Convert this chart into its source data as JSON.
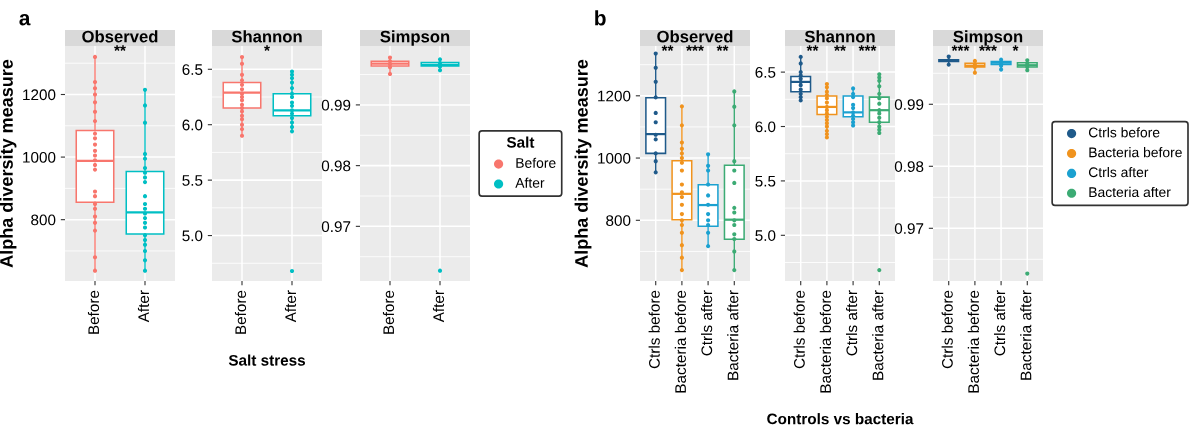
{
  "chart_data": [
    {
      "type": "box",
      "title": "Observed",
      "ylabel": "Alpha diversity measure",
      "categories": [
        "Before",
        "After"
      ],
      "colors": [
        "#f8766d",
        "#00bfc4"
      ],
      "ylim": [
        604,
        1355
      ],
      "yticks": [
        800,
        1000,
        1200
      ],
      "grid": true,
      "legend": false,
      "annotations": [
        "a",
        "**"
      ],
      "boxes": [
        {
          "low": 637,
          "q1": 856,
          "median": 988,
          "q3": 1085,
          "high": 1320
        },
        {
          "low": 637,
          "q1": 754,
          "median": 823,
          "q3": 954,
          "high": 1215
        }
      ],
      "series": [
        {
          "type": "scatter",
          "color": "#f8766d",
          "x": [
            "Before",
            "Before",
            "Before",
            "Before",
            "Before",
            "Before",
            "Before",
            "Before",
            "Before",
            "Before",
            "Before",
            "Before",
            "Before",
            "Before",
            "Before",
            "Before",
            "Before",
            "Before",
            "Before",
            "Before",
            "Before",
            "Before",
            "Before",
            "Before"
          ],
          "values": [
            1320,
            1240,
            1220,
            1200,
            1175,
            1145,
            1115,
            1075,
            1060,
            1040,
            1020,
            1005,
            990,
            975,
            960,
            890,
            875,
            850,
            835,
            810,
            790,
            765,
            680,
            637
          ]
        },
        {
          "type": "scatter",
          "color": "#00bfc4",
          "x": [
            "After",
            "After",
            "After",
            "After",
            "After",
            "After",
            "After",
            "After",
            "After",
            "After",
            "After",
            "After",
            "After",
            "After",
            "After",
            "After",
            "After",
            "After",
            "After",
            "After",
            "After",
            "After"
          ],
          "values": [
            1215,
            1165,
            1110,
            1010,
            995,
            965,
            950,
            935,
            920,
            875,
            850,
            835,
            820,
            805,
            790,
            775,
            750,
            735,
            720,
            700,
            670,
            637
          ]
        }
      ]
    },
    {
      "type": "box",
      "title": "Shannon",
      "xlabel": "Salt stress",
      "categories": [
        "Before",
        "After"
      ],
      "colors": [
        "#f8766d",
        "#00bfc4"
      ],
      "ylim": [
        4.59,
        6.71
      ],
      "yticks": [
        {
          "value": 5.0,
          "label": "5.0"
        },
        {
          "value": 5.5,
          "label": "5.5"
        },
        {
          "value": 6.0,
          "label": "6.0"
        },
        {
          "value": 6.5,
          "label": "6.5"
        }
      ],
      "grid": true,
      "legend": false,
      "annotations": [
        "*"
      ],
      "boxes": [
        {
          "low": 5.9,
          "q1": 6.15,
          "median": 6.29,
          "q3": 6.38,
          "high": 6.61
        },
        {
          "low": 5.94,
          "q1": 6.08,
          "median": 6.13,
          "q3": 6.28,
          "high": 6.48
        }
      ],
      "series": [
        {
          "type": "scatter",
          "color": "#f8766d",
          "x": [
            "Before",
            "Before",
            "Before",
            "Before",
            "Before",
            "Before",
            "Before",
            "Before",
            "Before",
            "Before",
            "Before",
            "Before",
            "Before",
            "Before",
            "Before",
            "Before",
            "Before"
          ],
          "values": [
            6.61,
            6.55,
            6.45,
            6.4,
            6.36,
            6.32,
            6.28,
            6.25,
            6.22,
            6.18,
            6.15,
            6.12,
            6.08,
            6.05,
            6.0,
            5.96,
            5.9
          ]
        },
        {
          "type": "scatter",
          "color": "#00bfc4",
          "x": [
            "After",
            "After",
            "After",
            "After",
            "After",
            "After",
            "After",
            "After",
            "After",
            "After",
            "After",
            "After",
            "After",
            "After",
            "After",
            "After"
          ],
          "values": [
            6.48,
            6.45,
            6.42,
            6.38,
            6.33,
            6.28,
            6.25,
            6.2,
            6.17,
            6.13,
            6.1,
            6.06,
            6.02,
            5.98,
            5.94,
            4.68
          ]
        }
      ]
    },
    {
      "type": "box",
      "title": "Simpson",
      "legend_title": "Salt",
      "categories": [
        "Before",
        "After"
      ],
      "colors": [
        "#f8766d",
        "#00bfc4"
      ],
      "ylim": [
        0.961,
        0.9997
      ],
      "yticks": [
        0.97,
        0.98,
        0.99
      ],
      "grid": true,
      "legend": "right",
      "boxes": [
        {
          "low": 0.9951,
          "q1": 0.9964,
          "median": 0.9968,
          "q3": 0.9972,
          "high": 0.9978
        },
        {
          "low": 0.9957,
          "q1": 0.9964,
          "median": 0.9966,
          "q3": 0.997,
          "high": 0.9975
        }
      ],
      "series": [
        {
          "type": "scatter",
          "name": "Before",
          "color": "#f8766d",
          "x": [
            "Before",
            "Before",
            "Before",
            "Before",
            "Before"
          ],
          "values": [
            0.9978,
            0.9972,
            0.9967,
            0.9962,
            0.9951
          ]
        },
        {
          "type": "scatter",
          "name": "After",
          "color": "#00bfc4",
          "x": [
            "After",
            "After",
            "After",
            "After",
            "After"
          ],
          "values": [
            0.9975,
            0.9969,
            0.9963,
            0.9957,
            0.9627
          ]
        }
      ]
    },
    {
      "type": "box",
      "title": "Observed",
      "ylabel": "Alpha diversity measure",
      "categories": [
        "Ctrls before",
        "Bacteria before",
        "Ctrls after",
        "Bacteria after"
      ],
      "colors": [
        "#1f5a8a",
        "#f0931e",
        "#1ba1d0",
        "#3cab74"
      ],
      "ylim": [
        605,
        1360
      ],
      "yticks": [
        800,
        1000,
        1200
      ],
      "grid": true,
      "legend": false,
      "annotations": [
        "b",
        "**",
        "***",
        "**"
      ],
      "boxes": [
        {
          "low": 954,
          "q1": 1015,
          "median": 1077,
          "q3": 1194,
          "high": 1336
        },
        {
          "low": 640,
          "q1": 802,
          "median": 885,
          "q3": 991,
          "high": 1166
        },
        {
          "low": 717,
          "q1": 781,
          "median": 849,
          "q3": 914,
          "high": 1012
        },
        {
          "low": 640,
          "q1": 739,
          "median": 802,
          "q3": 977,
          "high": 1214
        }
      ],
      "series": [
        {
          "type": "scatter",
          "color": "#1f5a8a",
          "x": [
            "Ctrls before",
            "Ctrls before",
            "Ctrls before",
            "Ctrls before",
            "Ctrls before",
            "Ctrls before",
            "Ctrls before",
            "Ctrls before",
            "Ctrls before",
            "Ctrls before",
            "Ctrls before"
          ],
          "values": [
            1336,
            1290,
            1245,
            1195,
            1145,
            1115,
            1075,
            1060,
            1015,
            990,
            954
          ]
        },
        {
          "type": "scatter",
          "color": "#f0931e",
          "x": [
            "Bacteria before",
            "Bacteria before",
            "Bacteria before",
            "Bacteria before",
            "Bacteria before",
            "Bacteria before",
            "Bacteria before",
            "Bacteria before",
            "Bacteria before",
            "Bacteria before",
            "Bacteria before",
            "Bacteria before",
            "Bacteria before",
            "Bacteria before",
            "Bacteria before",
            "Bacteria before",
            "Bacteria before",
            "Bacteria before",
            "Bacteria before"
          ],
          "values": [
            1166,
            1105,
            1050,
            1030,
            1015,
            1000,
            985,
            960,
            915,
            890,
            875,
            850,
            820,
            800,
            785,
            760,
            720,
            680,
            640
          ]
        },
        {
          "type": "scatter",
          "color": "#1ba1d0",
          "x": [
            "Ctrls after",
            "Ctrls after",
            "Ctrls after",
            "Ctrls after",
            "Ctrls after",
            "Ctrls after",
            "Ctrls after",
            "Ctrls after",
            "Ctrls after",
            "Ctrls after",
            "Ctrls after"
          ],
          "values": [
            1012,
            975,
            960,
            915,
            880,
            850,
            820,
            800,
            785,
            760,
            717
          ]
        },
        {
          "type": "scatter",
          "color": "#3cab74",
          "x": [
            "Bacteria after",
            "Bacteria after",
            "Bacteria after",
            "Bacteria after",
            "Bacteria after",
            "Bacteria after",
            "Bacteria after",
            "Bacteria after",
            "Bacteria after",
            "Bacteria after",
            "Bacteria after",
            "Bacteria after",
            "Bacteria after",
            "Bacteria after"
          ],
          "values": [
            1214,
            1165,
            1105,
            990,
            960,
            920,
            840,
            825,
            800,
            785,
            755,
            740,
            700,
            640
          ]
        }
      ]
    },
    {
      "type": "box",
      "title": "Shannon",
      "xlabel": "Controls vs bacteria",
      "categories": [
        "Ctrls before",
        "Bacteria before",
        "Ctrls after",
        "Bacteria after"
      ],
      "colors": [
        "#1f5a8a",
        "#f0931e",
        "#1ba1d0",
        "#3cab74"
      ],
      "ylim": [
        4.58,
        6.74
      ],
      "yticks": [
        {
          "value": 5.0,
          "label": "5.0"
        },
        {
          "value": 5.5,
          "label": "5.5"
        },
        {
          "value": 6.0,
          "label": "6.0"
        },
        {
          "value": 6.5,
          "label": "6.5"
        }
      ],
      "grid": true,
      "legend": false,
      "annotations": [
        "**",
        "**",
        "***"
      ],
      "boxes": [
        {
          "low": 6.24,
          "q1": 6.32,
          "median": 6.41,
          "q3": 6.46,
          "high": 6.64
        },
        {
          "low": 5.9,
          "q1": 6.11,
          "median": 6.18,
          "q3": 6.28,
          "high": 6.39
        },
        {
          "low": 6.01,
          "q1": 6.09,
          "median": 6.13,
          "q3": 6.28,
          "high": 6.35
        },
        {
          "low": 5.94,
          "q1": 6.04,
          "median": 6.15,
          "q3": 6.27,
          "high": 6.48
        }
      ],
      "series": [
        {
          "type": "scatter",
          "color": "#1f5a8a",
          "x": [
            "Ctrls before",
            "Ctrls before",
            "Ctrls before",
            "Ctrls before",
            "Ctrls before",
            "Ctrls before",
            "Ctrls before",
            "Ctrls before",
            "Ctrls before",
            "Ctrls before",
            "Ctrls before"
          ],
          "values": [
            6.64,
            6.58,
            6.5,
            6.47,
            6.44,
            6.41,
            6.38,
            6.34,
            6.3,
            6.27,
            6.24
          ]
        },
        {
          "type": "scatter",
          "color": "#f0931e",
          "x": [
            "Bacteria before",
            "Bacteria before",
            "Bacteria before",
            "Bacteria before",
            "Bacteria before",
            "Bacteria before",
            "Bacteria before",
            "Bacteria before",
            "Bacteria before",
            "Bacteria before",
            "Bacteria before",
            "Bacteria before",
            "Bacteria before",
            "Bacteria before",
            "Bacteria before",
            "Bacteria before"
          ],
          "values": [
            6.39,
            6.36,
            6.32,
            6.29,
            6.26,
            6.22,
            6.18,
            6.15,
            6.12,
            6.09,
            6.06,
            6.03,
            6.0,
            5.96,
            5.93,
            5.9
          ]
        },
        {
          "type": "scatter",
          "color": "#1ba1d0",
          "x": [
            "Ctrls after",
            "Ctrls after",
            "Ctrls after",
            "Ctrls after",
            "Ctrls after",
            "Ctrls after",
            "Ctrls after",
            "Ctrls after",
            "Ctrls after",
            "Ctrls after"
          ],
          "values": [
            6.35,
            6.3,
            6.27,
            6.2,
            6.17,
            6.13,
            6.1,
            6.07,
            6.04,
            6.01
          ]
        },
        {
          "type": "scatter",
          "color": "#3cab74",
          "x": [
            "Bacteria after",
            "Bacteria after",
            "Bacteria after",
            "Bacteria after",
            "Bacteria after",
            "Bacteria after",
            "Bacteria after",
            "Bacteria after",
            "Bacteria after",
            "Bacteria after",
            "Bacteria after",
            "Bacteria after",
            "Bacteria after",
            "Bacteria after",
            "Bacteria after"
          ],
          "values": [
            6.48,
            6.45,
            6.42,
            6.37,
            6.3,
            6.26,
            6.21,
            6.15,
            6.12,
            6.08,
            6.04,
            6.0,
            5.97,
            5.94,
            4.68
          ]
        }
      ]
    },
    {
      "type": "box",
      "title": "Simpson",
      "categories": [
        "Ctrls before",
        "Bacteria before",
        "Ctrls after",
        "Bacteria after"
      ],
      "colors": [
        "#1f5a8a",
        "#f0931e",
        "#1ba1d0",
        "#3cab74"
      ],
      "ylim": [
        0.9615,
        0.9994
      ],
      "yticks": [
        0.97,
        0.98,
        0.99
      ],
      "grid": true,
      "legend": "right",
      "annotations": [
        "***",
        "***",
        "*"
      ],
      "boxes": [
        {
          "low": 0.9964,
          "q1": 0.9969,
          "median": 0.9971,
          "q3": 0.9972,
          "high": 0.9977
        },
        {
          "low": 0.9951,
          "q1": 0.996,
          "median": 0.9962,
          "q3": 0.9966,
          "high": 0.997
        },
        {
          "low": 0.9956,
          "q1": 0.9964,
          "median": 0.9967,
          "q3": 0.9969,
          "high": 0.9972
        },
        {
          "low": 0.9955,
          "q1": 0.996,
          "median": 0.9963,
          "q3": 0.9967,
          "high": 0.9971
        }
      ],
      "series": [
        {
          "type": "scatter",
          "name": "Ctrls before",
          "color": "#1f5a8a",
          "x": [
            "Ctrls before",
            "Ctrls before",
            "Ctrls before"
          ],
          "values": [
            0.9977,
            0.9971,
            0.9964
          ]
        },
        {
          "type": "scatter",
          "name": "Bacteria before",
          "color": "#f0931e",
          "x": [
            "Bacteria before",
            "Bacteria before",
            "Bacteria before",
            "Bacteria before"
          ],
          "values": [
            0.997,
            0.9965,
            0.996,
            0.9951
          ]
        },
        {
          "type": "scatter",
          "name": "Ctrls after",
          "color": "#1ba1d0",
          "x": [
            "Ctrls after",
            "Ctrls after",
            "Ctrls after",
            "Ctrls after"
          ],
          "values": [
            0.9972,
            0.9967,
            0.9962,
            0.9956
          ]
        },
        {
          "type": "scatter",
          "name": "Bacteria after",
          "color": "#3cab74",
          "x": [
            "Bacteria after",
            "Bacteria after",
            "Bacteria after",
            "Bacteria after",
            "Bacteria after"
          ],
          "values": [
            0.9971,
            0.9965,
            0.996,
            0.9955,
            0.9627
          ]
        }
      ]
    }
  ]
}
